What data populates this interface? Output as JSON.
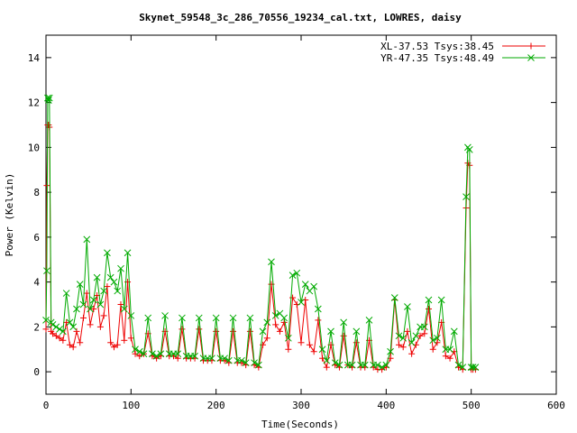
{
  "chart_data": {
    "type": "line",
    "title": "Skynet_59548_3c_286_70556_19234_cal.txt, LOWRES, daisy",
    "xlabel": "Time(Seconds)",
    "ylabel": "Power (Kelvin)",
    "xlim": [
      0,
      600
    ],
    "ylim": [
      -1,
      15
    ],
    "xticks": [
      0,
      100,
      200,
      300,
      400,
      500,
      600
    ],
    "yticks": [
      0,
      2,
      4,
      6,
      8,
      10,
      12,
      14
    ],
    "grid": false,
    "legend_position": "top-right",
    "series": [
      {
        "name": "XL-37.53 Tsys:38.45",
        "color": "#ee0000",
        "marker": "plus",
        "x": [
          0,
          1,
          2,
          3,
          4,
          6,
          8,
          12,
          16,
          20,
          24,
          28,
          32,
          36,
          40,
          44,
          48,
          52,
          56,
          60,
          64,
          68,
          72,
          76,
          80,
          84,
          88,
          92,
          96,
          100,
          105,
          110,
          115,
          120,
          125,
          130,
          135,
          140,
          145,
          150,
          155,
          160,
          165,
          170,
          175,
          180,
          185,
          190,
          195,
          200,
          205,
          210,
          215,
          220,
          225,
          230,
          235,
          240,
          245,
          250,
          255,
          260,
          265,
          270,
          275,
          280,
          285,
          290,
          295,
          300,
          305,
          310,
          315,
          320,
          325,
          330,
          335,
          340,
          345,
          350,
          355,
          360,
          365,
          370,
          375,
          380,
          385,
          390,
          395,
          400,
          405,
          410,
          415,
          420,
          425,
          430,
          435,
          440,
          445,
          450,
          455,
          460,
          465,
          470,
          475,
          480,
          485,
          490,
          494,
          496,
          498,
          500,
          502,
          505
        ],
        "y": [
          1.9,
          8.3,
          11.0,
          11.0,
          10.9,
          1.8,
          1.7,
          1.6,
          1.5,
          1.4,
          2.2,
          1.2,
          1.1,
          1.8,
          1.3,
          2.4,
          3.5,
          2.1,
          2.8,
          3.4,
          2.0,
          2.5,
          3.8,
          1.3,
          1.1,
          1.2,
          3.0,
          1.4,
          4.0,
          1.5,
          0.8,
          0.7,
          0.8,
          1.7,
          0.7,
          0.6,
          0.7,
          1.8,
          0.7,
          0.7,
          0.6,
          1.9,
          0.6,
          0.6,
          0.6,
          1.9,
          0.5,
          0.5,
          0.5,
          1.8,
          0.5,
          0.5,
          0.4,
          1.8,
          0.4,
          0.4,
          0.3,
          1.8,
          0.3,
          0.2,
          1.2,
          1.5,
          3.9,
          2.1,
          1.8,
          2.2,
          1.0,
          3.3,
          3.0,
          1.3,
          3.2,
          1.2,
          0.9,
          2.3,
          0.6,
          0.2,
          1.2,
          0.3,
          0.2,
          1.6,
          0.3,
          0.2,
          1.3,
          0.2,
          0.2,
          1.4,
          0.2,
          0.1,
          0.1,
          0.2,
          0.6,
          3.2,
          1.2,
          1.1,
          1.8,
          0.8,
          1.2,
          1.6,
          1.7,
          2.8,
          1.0,
          1.3,
          2.2,
          0.7,
          0.6,
          0.9,
          0.2,
          0.1,
          7.3,
          9.3,
          9.2,
          0.1,
          0.1,
          0.1
        ]
      },
      {
        "name": "YR-47.35 Tsys:48.49",
        "color": "#00aa00",
        "marker": "cross",
        "x": [
          0,
          1,
          2,
          3,
          4,
          6,
          8,
          12,
          16,
          20,
          24,
          28,
          32,
          36,
          40,
          44,
          48,
          52,
          56,
          60,
          64,
          68,
          72,
          76,
          80,
          84,
          88,
          92,
          96,
          100,
          105,
          110,
          115,
          120,
          125,
          130,
          135,
          140,
          145,
          150,
          155,
          160,
          165,
          170,
          175,
          180,
          185,
          190,
          195,
          200,
          205,
          210,
          215,
          220,
          225,
          230,
          235,
          240,
          245,
          250,
          255,
          260,
          265,
          270,
          275,
          280,
          285,
          290,
          295,
          300,
          305,
          310,
          315,
          320,
          325,
          330,
          335,
          340,
          345,
          350,
          355,
          360,
          365,
          370,
          375,
          380,
          385,
          390,
          395,
          400,
          405,
          410,
          415,
          420,
          425,
          430,
          435,
          440,
          445,
          450,
          455,
          460,
          465,
          470,
          475,
          480,
          485,
          490,
          494,
          496,
          498,
          500,
          502,
          505
        ],
        "y": [
          2.3,
          4.5,
          12.2,
          12.1,
          12.2,
          2.2,
          2.1,
          2.0,
          1.9,
          1.8,
          3.5,
          2.2,
          2.0,
          2.8,
          3.9,
          3.0,
          5.9,
          2.8,
          3.2,
          4.2,
          3.0,
          3.6,
          5.3,
          4.2,
          4.0,
          3.6,
          4.6,
          2.8,
          5.3,
          2.5,
          1.0,
          0.9,
          0.8,
          2.4,
          0.8,
          0.7,
          0.8,
          2.5,
          0.8,
          0.8,
          0.8,
          2.4,
          0.7,
          0.7,
          0.7,
          2.4,
          0.6,
          0.6,
          0.6,
          2.4,
          0.6,
          0.6,
          0.5,
          2.4,
          0.5,
          0.5,
          0.4,
          2.4,
          0.4,
          0.3,
          1.8,
          2.2,
          4.9,
          2.5,
          2.6,
          2.4,
          1.5,
          4.3,
          4.4,
          3.1,
          3.9,
          3.6,
          3.8,
          2.8,
          1.0,
          0.5,
          1.8,
          0.4,
          0.3,
          2.2,
          0.3,
          0.3,
          1.8,
          0.3,
          0.3,
          2.3,
          0.3,
          0.3,
          0.2,
          0.3,
          0.9,
          3.3,
          1.6,
          1.5,
          2.9,
          1.3,
          1.6,
          2.0,
          2.0,
          3.2,
          1.4,
          1.5,
          3.2,
          1.0,
          1.0,
          1.8,
          0.3,
          0.2,
          7.8,
          10.0,
          9.9,
          0.2,
          0.2,
          0.2
        ]
      }
    ]
  }
}
